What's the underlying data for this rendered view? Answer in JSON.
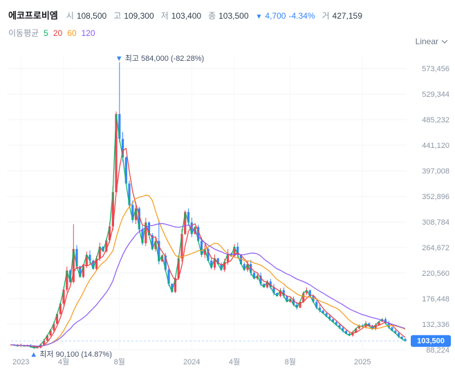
{
  "header": {
    "stock_name": "에코프로비엠",
    "open_label": "시",
    "open_value": "108,500",
    "high_label": "고",
    "high_value": "109,300",
    "low_label": "저",
    "low_value": "103,400",
    "close_label": "종",
    "close_value": "103,500",
    "change_arrow": "▼",
    "change_value": "4,700",
    "change_pct": "-4.34%",
    "volume_label": "거",
    "volume_value": "427,159"
  },
  "legend": {
    "label": "이동평균",
    "periods": [
      {
        "label": "5",
        "color": "#0bb25f"
      },
      {
        "label": "20",
        "color": "#e8403e"
      },
      {
        "label": "60",
        "color": "#f59b1b"
      },
      {
        "label": "120",
        "color": "#8b5cf6"
      }
    ]
  },
  "scale_selector": {
    "label": "Linear"
  },
  "chart_data": {
    "type": "candlestick",
    "title": "에코프로비엠",
    "unit": "KRW",
    "colors": {
      "up": "#f04452",
      "down": "#3485fa"
    },
    "y_axis": {
      "scale": "Linear",
      "ticks": [
        {
          "value": 573456,
          "label": "573,456"
        },
        {
          "value": 529344,
          "label": "529,344"
        },
        {
          "value": 485232,
          "label": "485,232"
        },
        {
          "value": 441120,
          "label": "441,120"
        },
        {
          "value": 397008,
          "label": "397,008"
        },
        {
          "value": 352896,
          "label": "352,896"
        },
        {
          "value": 308784,
          "label": "308,784"
        },
        {
          "value": 264672,
          "label": "264,672"
        },
        {
          "value": 220560,
          "label": "220,560"
        },
        {
          "value": 176448,
          "label": "176,448"
        },
        {
          "value": 132336,
          "label": "132,336"
        },
        {
          "value": 88224,
          "label": "88,224"
        }
      ]
    },
    "x_axis": {
      "labels": [
        {
          "label": "2023",
          "week": 3
        },
        {
          "label": "4월",
          "week": 16
        },
        {
          "label": "8월",
          "week": 33
        },
        {
          "label": "2024",
          "week": 55
        },
        {
          "label": "4월",
          "week": 68
        },
        {
          "label": "8월",
          "week": 85
        },
        {
          "label": "2025",
          "week": 107
        }
      ]
    },
    "closes": [
      97000,
      96000,
      95000,
      96000,
      94500,
      95500,
      93500,
      91500,
      92000,
      97000,
      104000,
      113000,
      122000,
      133000,
      150000,
      168000,
      192000,
      225000,
      205000,
      262000,
      232000,
      214000,
      233000,
      252000,
      242000,
      228000,
      246000,
      266000,
      258000,
      277000,
      301000,
      360000,
      495000,
      452000,
      420000,
      375000,
      338000,
      312000,
      332000,
      296000,
      272000,
      308000,
      286000,
      262000,
      276000,
      241000,
      251000,
      226000,
      202000,
      188000,
      212000,
      246000,
      288000,
      326000,
      308000,
      288000,
      300000,
      276000,
      252000,
      262000,
      242000,
      230000,
      246000,
      236000,
      226000,
      240000,
      254000,
      250000,
      266000,
      252000,
      236000,
      226000,
      236000,
      221000,
      211000,
      216000,
      202000,
      196000,
      206000,
      196000,
      186000,
      181000,
      191000,
      181000,
      171000,
      176000,
      166000,
      161000,
      171000,
      186000,
      191000,
      181000,
      171000,
      161000,
      156000,
      151000,
      146000,
      141000,
      136000,
      131000,
      126000,
      121000,
      116000,
      113000,
      118000,
      125000,
      130000,
      128000,
      134000,
      129000,
      124000,
      131000,
      137000,
      141000,
      134000,
      127000,
      121000,
      117000,
      111000,
      107000,
      103500
    ],
    "wick_overrides": {
      "7": {
        "low": 90100
      },
      "19": {
        "high": 305000
      },
      "33": {
        "high": 584000
      },
      "45": {
        "high": 312000
      }
    },
    "moving_averages": [
      {
        "period": 5,
        "weeks": 1,
        "color": "#0bb25f"
      },
      {
        "period": 20,
        "weeks": 4,
        "color": "#e8403e"
      },
      {
        "period": 60,
        "weeks": 12,
        "color": "#f59b1b"
      },
      {
        "period": 120,
        "weeks": 24,
        "color": "#8b5cf6"
      }
    ],
    "peak": {
      "week": 33,
      "value": 584000,
      "arrow": "▼",
      "label": "최고 584,000 (-82.28%)"
    },
    "trough": {
      "week": 7,
      "value": 90100,
      "arrow": "▲",
      "label": "최저 90,100 (14.87%)"
    },
    "last_price": {
      "value": 103500,
      "label": "103,500"
    }
  }
}
